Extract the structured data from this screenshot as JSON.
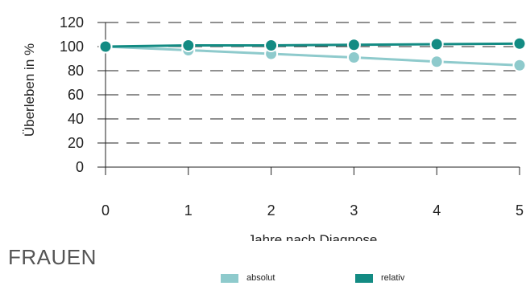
{
  "chart_data": {
    "type": "line",
    "x": [
      0,
      1,
      2,
      3,
      4,
      5
    ],
    "xlabel": "Jahre nach Diagnose",
    "ylabel": "Überleben in %",
    "ylim": [
      0,
      120
    ],
    "yticks": [
      0,
      20,
      40,
      60,
      80,
      100,
      120
    ],
    "xticks": [
      0,
      1,
      2,
      3,
      4,
      5
    ],
    "grid": "dashed horizontal",
    "legend_position": "bottom",
    "series": [
      {
        "name": "absolut",
        "color": "#8ecacc",
        "values": [
          100,
          97,
          94,
          91,
          87.5,
          84.5
        ]
      },
      {
        "name": "relativ",
        "color": "#138b83",
        "values": [
          100,
          101,
          101,
          101.5,
          102,
          102.5
        ]
      }
    ]
  },
  "panel_title": "FRAUEN",
  "legend": {
    "absolut": "absolut",
    "relativ": "relativ",
    "absolut_color": "#8ecacc",
    "relativ_color": "#138b83"
  }
}
